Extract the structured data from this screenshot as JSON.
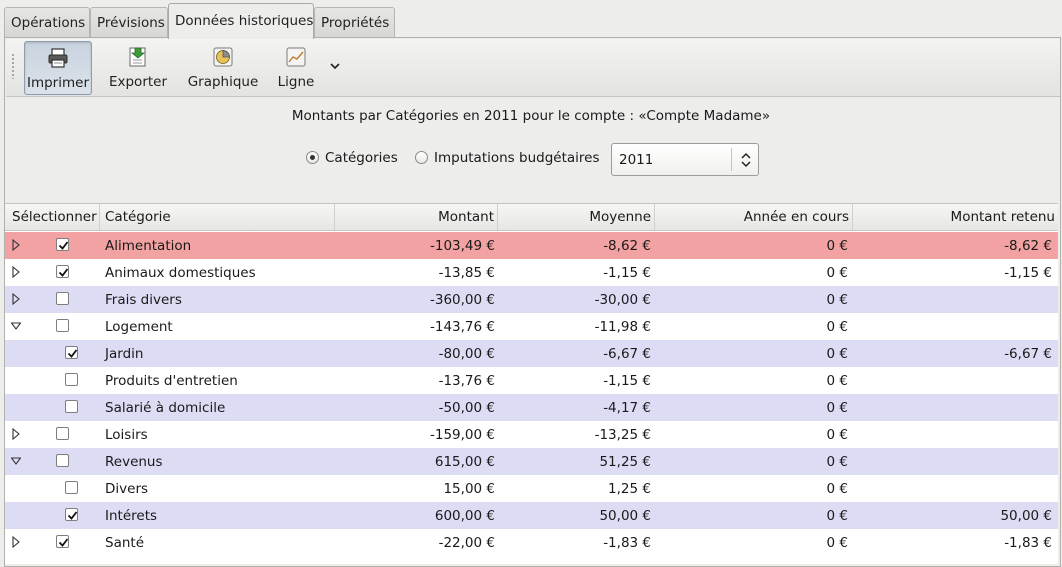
{
  "tabs": [
    {
      "label": "Opérations"
    },
    {
      "label": "Prévisions"
    },
    {
      "label": "Données historiques"
    },
    {
      "label": "Propriétés"
    }
  ],
  "toolbar": {
    "print_label": "Imprimer",
    "export_label": "Exporter",
    "chart_label": "Graphique",
    "line_label": "Ligne"
  },
  "report": {
    "title": "Montants par Catégories en 2011 pour le compte : «Compte Madame»",
    "radio_categories": "Catégories",
    "radio_budget": "Imputations budgétaires",
    "year": "2011"
  },
  "table": {
    "headers": {
      "select": "Sélectionner",
      "category": "Catégorie",
      "amount": "Montant",
      "average": "Moyenne",
      "current_year": "Année en cours",
      "retained": "Montant retenu"
    },
    "rows": [
      {
        "category": "Alimentation",
        "amount": "-103,49 €",
        "average": "-8,62 €",
        "current": "0 €",
        "retained": "-8,62 €",
        "checked": true,
        "expander": "collapsed",
        "child": false
      },
      {
        "category": "Animaux domestiques",
        "amount": "-13,85 €",
        "average": "-1,15 €",
        "current": "0 €",
        "retained": "-1,15 €",
        "checked": true,
        "expander": "collapsed",
        "child": false
      },
      {
        "category": "Frais divers",
        "amount": "-360,00 €",
        "average": "-30,00 €",
        "current": "0 €",
        "retained": "",
        "checked": false,
        "expander": "collapsed",
        "child": false
      },
      {
        "category": "Logement",
        "amount": "-143,76 €",
        "average": "-11,98 €",
        "current": "0 €",
        "retained": "",
        "checked": false,
        "expander": "expanded",
        "child": false
      },
      {
        "category": "Jardin",
        "amount": "-80,00 €",
        "average": "-6,67 €",
        "current": "0 €",
        "retained": "-6,67 €",
        "checked": true,
        "expander": "none",
        "child": true
      },
      {
        "category": "Produits d'entretien",
        "amount": "-13,76 €",
        "average": "-1,15 €",
        "current": "0 €",
        "retained": "",
        "checked": false,
        "expander": "none",
        "child": true
      },
      {
        "category": "Salarié à domicile",
        "amount": "-50,00 €",
        "average": "-4,17 €",
        "current": "0 €",
        "retained": "",
        "checked": false,
        "expander": "none",
        "child": true
      },
      {
        "category": "Loisirs",
        "amount": "-159,00 €",
        "average": "-13,25 €",
        "current": "0 €",
        "retained": "",
        "checked": false,
        "expander": "collapsed",
        "child": false
      },
      {
        "category": "Revenus",
        "amount": "615,00 €",
        "average": "51,25 €",
        "current": "0 €",
        "retained": "",
        "checked": false,
        "expander": "expanded",
        "child": false
      },
      {
        "category": "Divers",
        "amount": "15,00 €",
        "average": "1,25 €",
        "current": "0 €",
        "retained": "",
        "checked": false,
        "expander": "none",
        "child": true
      },
      {
        "category": "Intérets",
        "amount": "600,00 €",
        "average": "50,00 €",
        "current": "0 €",
        "retained": "50,00 €",
        "checked": true,
        "expander": "none",
        "child": true
      },
      {
        "category": "Santé",
        "amount": "-22,00 €",
        "average": "-1,83 €",
        "current": "0 €",
        "retained": "-1,83 €",
        "checked": true,
        "expander": "collapsed",
        "child": false
      }
    ]
  },
  "colors": {
    "highlight_row": "#f2a2a2",
    "alt_row": "#dcdcf5"
  }
}
